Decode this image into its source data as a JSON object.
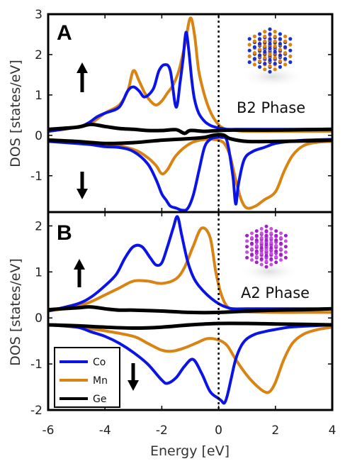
{
  "figure": {
    "xlabel": "Energy [eV]"
  },
  "legend": [
    {
      "name": "Co",
      "color": "#0a14e6"
    },
    {
      "name": "Mn",
      "color": "#d98312"
    },
    {
      "name": "Ge",
      "color": "#000000"
    }
  ],
  "colors": {
    "Co": "#0a14e6",
    "Mn": "#d98312",
    "Ge": "#000000",
    "fermi": "#000000"
  },
  "icons": [
    "spin-up-arrow-icon",
    "spin-down-arrow-icon",
    "b2-crystal-icon",
    "a2-crystal-icon"
  ],
  "chart_data": [
    {
      "type": "line",
      "panel": "A",
      "annotation": "B2 Phase",
      "ylabel": "DOS [states/eV]",
      "xlim": [
        -6,
        4
      ],
      "ylim": [
        -1.9,
        3
      ],
      "xticks": [
        -6,
        -4,
        -2,
        0,
        2,
        4
      ],
      "yticks": [
        -1,
        0,
        1,
        2,
        3
      ],
      "fermi_level": 0,
      "series": [
        {
          "name": "Co",
          "x": [
            -6,
            -5,
            -4.6,
            -4.3,
            -4,
            -3.5,
            -3.2,
            -3,
            -2.8,
            -2.6,
            -2.3,
            -2.1,
            -1.9,
            -1.7,
            -1.5,
            -1.35,
            -1.25,
            -1.15,
            -1.05,
            -0.95,
            -0.85,
            -0.7,
            -0.5,
            -0.3,
            -0.1,
            0.1,
            0.3,
            0.6,
            1,
            1.5,
            2,
            3,
            4
          ],
          "y": [
            0.1,
            0.2,
            0.3,
            0.45,
            0.55,
            0.7,
            1.1,
            1.2,
            1.1,
            0.95,
            1.15,
            1.6,
            1.75,
            1.6,
            0.7,
            1.35,
            1.9,
            2.55,
            2.1,
            1.4,
            0.9,
            0.55,
            0.35,
            0.25,
            0.2,
            0.17,
            0.15,
            0.15,
            0.15,
            0.15,
            0.15,
            0.15,
            0.15
          ]
        },
        {
          "name": "Mn",
          "x": [
            -6,
            -5,
            -4.5,
            -4,
            -3.5,
            -3.2,
            -3.0,
            -2.8,
            -2.6,
            -2.4,
            -2.2,
            -2.0,
            -1.8,
            -1.6,
            -1.4,
            -1.2,
            -1.0,
            -0.85,
            -0.7,
            -0.5,
            -0.3,
            -0.1,
            0.1,
            0.3,
            0.6,
            1,
            2,
            3,
            4
          ],
          "y": [
            0.1,
            0.2,
            0.3,
            0.55,
            0.75,
            1.1,
            1.6,
            1.35,
            1.05,
            0.85,
            0.75,
            0.85,
            1.05,
            1.25,
            1.6,
            2.2,
            2.9,
            2.5,
            1.6,
            1.0,
            0.6,
            0.35,
            0.2,
            0.15,
            0.12,
            0.1,
            0.1,
            0.1,
            0.1
          ]
        },
        {
          "name": "Ge",
          "x": [
            -6,
            -5,
            -4.5,
            -4,
            -3.5,
            -3,
            -2.5,
            -2,
            -1.5,
            -1.2,
            -1,
            -0.5,
            0,
            0.5,
            1,
            2,
            3,
            4
          ],
          "y": [
            0.15,
            0.2,
            0.27,
            0.22,
            0.17,
            0.15,
            0.12,
            0.12,
            0.14,
            0.05,
            0.12,
            0.1,
            0.12,
            0.13,
            0.13,
            0.13,
            0.14,
            0.15
          ]
        },
        {
          "name": "Co",
          "x": [
            -6,
            -5,
            -4.5,
            -4,
            -3.5,
            -3,
            -2.5,
            -2.2,
            -2.0,
            -1.85,
            -1.7,
            -1.5,
            -1.3,
            -1.1,
            -0.9,
            -0.7,
            -0.5,
            -0.3,
            -0.1,
            0.1,
            0.3,
            0.5,
            0.6,
            0.7,
            0.9,
            1.2,
            1.6,
            2,
            2.5,
            3,
            4
          ],
          "y": [
            -0.15,
            -0.2,
            -0.23,
            -0.28,
            -0.3,
            -0.4,
            -0.7,
            -1.1,
            -1.45,
            -1.6,
            -1.75,
            -1.8,
            -1.85,
            -1.82,
            -1.5,
            -0.9,
            -0.3,
            -0.1,
            -0.05,
            -0.05,
            -0.15,
            -1.0,
            -1.7,
            -1.2,
            -0.6,
            -0.4,
            -0.3,
            -0.2,
            -0.15,
            -0.12,
            -0.1
          ]
        },
        {
          "name": "Mn",
          "x": [
            -6,
            -5,
            -4,
            -3,
            -2.5,
            -2.2,
            -2.0,
            -1.8,
            -1.5,
            -1.0,
            -0.5,
            -0.2,
            0,
            0.2,
            0.4,
            0.6,
            0.8,
            1.0,
            1.3,
            1.6,
            2,
            2.3,
            2.6,
            3,
            3.5,
            4
          ],
          "y": [
            -0.1,
            -0.15,
            -0.2,
            -0.35,
            -0.55,
            -0.75,
            -0.95,
            -0.85,
            -0.5,
            -0.2,
            -0.1,
            -0.1,
            -0.12,
            -0.2,
            -0.5,
            -1.1,
            -1.6,
            -1.8,
            -1.75,
            -1.6,
            -1.4,
            -0.9,
            -0.5,
            -0.25,
            -0.17,
            -0.15
          ]
        },
        {
          "name": "Ge",
          "x": [
            -6,
            -5,
            -4,
            -3,
            -2,
            -1.5,
            -1,
            -0.5,
            -0.2,
            0,
            0.2,
            0.4,
            1,
            2,
            3,
            4
          ],
          "y": [
            -0.12,
            -0.15,
            -0.2,
            -0.18,
            -0.12,
            -0.1,
            -0.08,
            -0.05,
            0,
            0.02,
            0,
            -0.08,
            -0.15,
            -0.15,
            -0.14,
            -0.12
          ]
        }
      ]
    },
    {
      "type": "line",
      "panel": "B",
      "annotation": "A2 Phase",
      "ylabel": "DOS [states/eV]",
      "xlim": [
        -6,
        4
      ],
      "ylim": [
        -2,
        2.3
      ],
      "xticks": [
        -6,
        -4,
        -2,
        0,
        2,
        4
      ],
      "yticks": [
        -2,
        -1,
        0,
        1,
        2
      ],
      "fermi_level": 0,
      "series": [
        {
          "name": "Co",
          "x": [
            -6,
            -5,
            -4.5,
            -4,
            -3.6,
            -3.3,
            -3,
            -2.7,
            -2.4,
            -2.2,
            -2.0,
            -1.8,
            -1.6,
            -1.45,
            -1.3,
            -1.1,
            -0.9,
            -0.7,
            -0.4,
            -0.1,
            0.2,
            0.5,
            1,
            2,
            3,
            4
          ],
          "y": [
            0.15,
            0.3,
            0.45,
            0.7,
            0.95,
            1.3,
            1.55,
            1.55,
            1.3,
            1.15,
            1.2,
            1.55,
            1.95,
            2.2,
            1.8,
            1.25,
            0.9,
            0.7,
            0.5,
            0.35,
            0.25,
            0.2,
            0.2,
            0.2,
            0.2,
            0.2
          ]
        },
        {
          "name": "Mn",
          "x": [
            -6,
            -5,
            -4.5,
            -4,
            -3.5,
            -3,
            -2.5,
            -2,
            -1.5,
            -1.2,
            -0.9,
            -0.6,
            -0.3,
            -0.1,
            0.1,
            0.3,
            0.6,
            1,
            2,
            3,
            4
          ],
          "y": [
            0.15,
            0.25,
            0.35,
            0.5,
            0.65,
            0.8,
            0.8,
            0.75,
            0.85,
            1.1,
            1.55,
            1.95,
            1.75,
            1.0,
            0.5,
            0.25,
            0.15,
            0.13,
            0.12,
            0.12,
            0.12
          ]
        },
        {
          "name": "Ge",
          "x": [
            -6,
            -5,
            -4.5,
            -4,
            -3.5,
            -3,
            -2,
            -1,
            0,
            1,
            2,
            3,
            4
          ],
          "y": [
            0.18,
            0.22,
            0.24,
            0.2,
            0.17,
            0.17,
            0.15,
            0.12,
            0.12,
            0.15,
            0.17,
            0.18,
            0.2
          ]
        },
        {
          "name": "Co",
          "x": [
            -6,
            -5,
            -4.5,
            -4,
            -3.5,
            -3,
            -2.5,
            -2.0,
            -1.8,
            -1.5,
            -1.2,
            -0.9,
            -0.6,
            -0.3,
            0,
            0.1,
            0.2,
            0.3,
            0.45,
            0.6,
            0.8,
            1.0,
            1.3,
            1.6,
            2,
            2.5,
            3,
            4
          ],
          "y": [
            -0.15,
            -0.2,
            -0.3,
            -0.4,
            -0.55,
            -0.75,
            -1.0,
            -1.35,
            -1.42,
            -1.3,
            -1.05,
            -0.9,
            -1.2,
            -1.6,
            -1.75,
            -1.8,
            -1.85,
            -1.7,
            -1.3,
            -0.9,
            -0.6,
            -0.45,
            -0.35,
            -0.3,
            -0.25,
            -0.2,
            -0.18,
            -0.15
          ]
        },
        {
          "name": "Mn",
          "x": [
            -6,
            -5,
            -4,
            -3,
            -2.5,
            -2,
            -1.6,
            -1.2,
            -0.8,
            -0.4,
            0,
            0.3,
            0.6,
            1,
            1.3,
            1.6,
            1.8,
            2.0,
            2.3,
            2.6,
            3,
            3.5,
            4
          ],
          "y": [
            -0.15,
            -0.2,
            -0.28,
            -0.4,
            -0.55,
            -0.7,
            -0.72,
            -0.65,
            -0.55,
            -0.45,
            -0.48,
            -0.6,
            -0.9,
            -1.25,
            -1.45,
            -1.6,
            -1.6,
            -1.4,
            -0.9,
            -0.55,
            -0.35,
            -0.25,
            -0.2
          ]
        },
        {
          "name": "Ge",
          "x": [
            -6,
            -5,
            -4,
            -3,
            -2,
            -1,
            0,
            1,
            2,
            3,
            4
          ],
          "y": [
            -0.15,
            -0.17,
            -0.2,
            -0.22,
            -0.2,
            -0.15,
            -0.12,
            -0.12,
            -0.13,
            -0.14,
            -0.15
          ]
        }
      ]
    }
  ]
}
